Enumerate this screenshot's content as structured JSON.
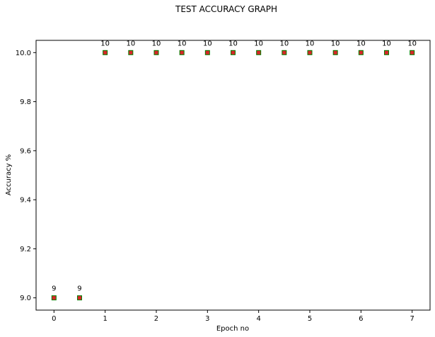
{
  "chart_data": {
    "type": "scatter",
    "title": "TEST ACCURACY GRAPH",
    "xlabel": "Epoch no",
    "ylabel": "Accuracy %",
    "xlim": [
      -0.35,
      7.35
    ],
    "ylim": [
      8.95,
      10.05
    ],
    "x_ticks": [
      0,
      1,
      2,
      3,
      4,
      5,
      6,
      7
    ],
    "y_ticks": [
      9.0,
      9.2,
      9.4,
      9.6,
      9.8,
      10.0
    ],
    "y_tick_labels": [
      "9.0",
      "9.2",
      "9.4",
      "9.6",
      "9.8",
      "10.0"
    ],
    "x": [
      0,
      0.5,
      1,
      1.5,
      2,
      2.5,
      3,
      3.5,
      4,
      4.5,
      5,
      5.5,
      6,
      6.5,
      7
    ],
    "y": [
      9,
      9,
      10,
      10,
      10,
      10,
      10,
      10,
      10,
      10,
      10,
      10,
      10,
      10,
      10
    ],
    "point_labels": [
      "9",
      "9",
      "10",
      "10",
      "10",
      "10",
      "10",
      "10",
      "10",
      "10",
      "10",
      "10",
      "10",
      "10",
      "10"
    ],
    "marker_colors": {
      "outer": "#008000",
      "inner": "#d62728"
    },
    "grid": false,
    "legend": "none"
  }
}
